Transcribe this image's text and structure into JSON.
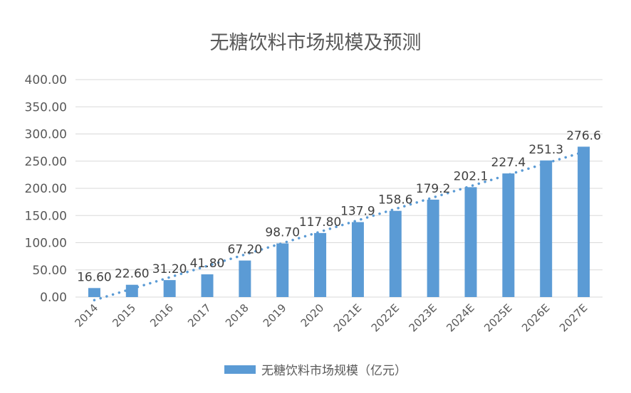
{
  "chart_data": {
    "type": "bar",
    "title": "无糖饮料市场规模及预测",
    "categories": [
      "2014",
      "2015",
      "2016",
      "2017",
      "2018",
      "2019",
      "2020",
      "2021E",
      "2022E",
      "2023E",
      "2024E",
      "2025E",
      "2026E",
      "2027E"
    ],
    "series": [
      {
        "name": "无糖饮料市场规模（亿元）",
        "values": [
          16.6,
          22.6,
          31.2,
          41.8,
          67.2,
          98.7,
          117.8,
          137.9,
          158.6,
          179.2,
          202.1,
          227.4,
          251.3,
          276.6
        ],
        "data_labels": [
          "16.60",
          "22.60",
          "31.20",
          "41.80",
          "67.20",
          "98.70",
          "117.80",
          "137.9",
          "158.6",
          "179.2",
          "202.1",
          "227.4",
          "251.3",
          "276.6"
        ],
        "color": "#5B9BD5"
      }
    ],
    "trendline": {
      "type": "linear",
      "style": "dotted",
      "color": "#5B9BD5"
    },
    "ylim": [
      0,
      400
    ],
    "yticks": [
      "0.00",
      "50.00",
      "100.00",
      "150.00",
      "200.00",
      "250.00",
      "300.00",
      "350.00",
      "400.00"
    ],
    "ytick_values": [
      0,
      50,
      100,
      150,
      200,
      250,
      300,
      350,
      400
    ],
    "grid": true,
    "legend_position": "bottom",
    "xlabel": "",
    "ylabel": ""
  }
}
